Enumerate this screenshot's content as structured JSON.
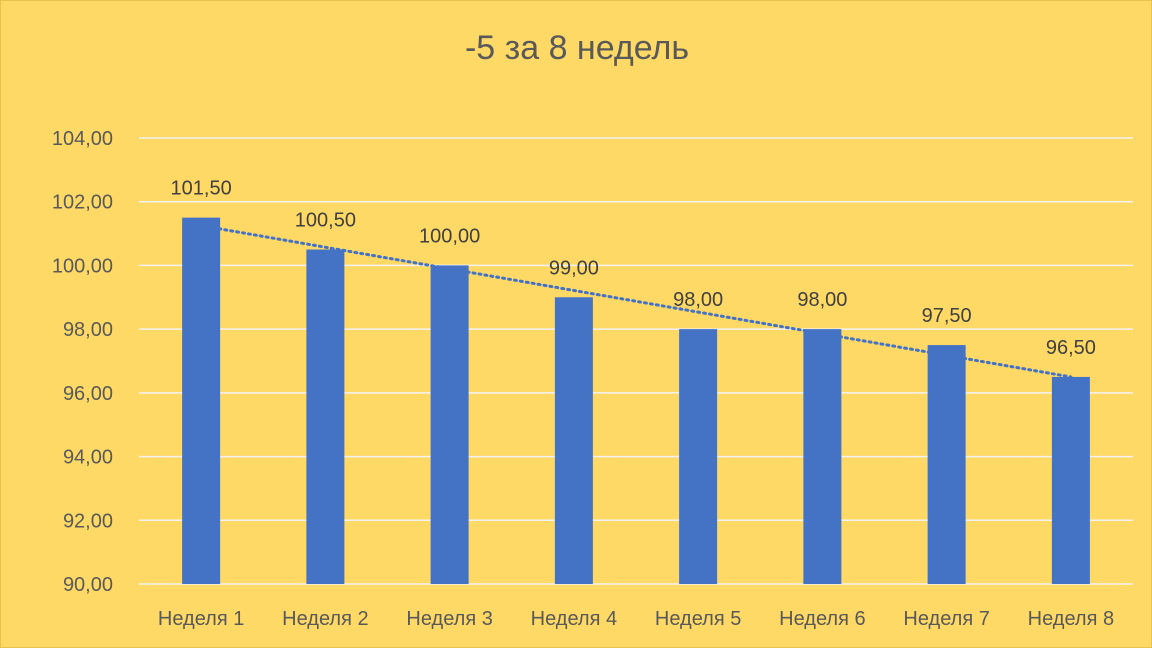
{
  "chart_data": {
    "type": "bar",
    "title": "-5 за 8 недель",
    "xlabel": "",
    "ylabel": "",
    "categories": [
      "Неделя 1",
      "Неделя 2",
      "Неделя 3",
      "Неделя 4",
      "Неделя 5",
      "Неделя 6",
      "Неделя 7",
      "Неделя 8"
    ],
    "values": [
      101.5,
      100.5,
      100.0,
      99.0,
      98.0,
      98.0,
      97.5,
      96.5
    ],
    "data_labels": [
      "101,50",
      "100,50",
      "100,00",
      "99,00",
      "98,00",
      "98,00",
      "97,50",
      "96,50"
    ],
    "ylim": [
      90,
      104
    ],
    "yticks": [
      90,
      92,
      94,
      96,
      98,
      100,
      102,
      104
    ],
    "ytick_labels": [
      "90,00",
      "92,00",
      "94,00",
      "96,00",
      "98,00",
      "100,00",
      "102,00",
      "104,00"
    ],
    "grid": true,
    "legend": "none",
    "trendline": "linear",
    "colors": {
      "background": "#FFD966",
      "bar": "#4472C4",
      "trendline": "#4472C4",
      "gridline": "#F2F2F2",
      "text": "#595959"
    }
  }
}
